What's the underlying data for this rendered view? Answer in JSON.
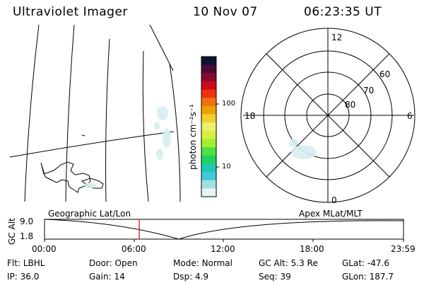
{
  "header": {
    "title": "Ultraviolet Imager",
    "date": "10 Nov 07",
    "time": "06:23:35 UT"
  },
  "colorbar": {
    "unit_label": "photon cm⁻²s⁻¹",
    "ticks": [
      "100",
      "10"
    ],
    "colors": [
      "#111133",
      "#4a0a3a",
      "#8a0a2a",
      "#cc0a1a",
      "#ee3010",
      "#f07010",
      "#f0a000",
      "#f0d030",
      "#f0f070",
      "#d8f040",
      "#a0f030",
      "#50e040",
      "#20d060",
      "#20c8b0",
      "#40c8d8",
      "#a0e0e0",
      "#e8f4f4"
    ]
  },
  "polar_plot": {
    "mlt_labels": {
      "top": "12",
      "left": "18",
      "right": "6",
      "bottom": "0"
    },
    "lat_labels": [
      "80",
      "70",
      "60"
    ]
  },
  "timeline": {
    "y_axis_label": "GC Alt",
    "y_ticks": [
      "9.0",
      "1.8"
    ],
    "left_label": "Geographic Lat/Lon",
    "right_label": "Apex  MLat/MLT",
    "x_ticks": [
      "00:00",
      "06:00",
      "12:00",
      "18:00",
      "23:59"
    ],
    "marker_color": "#dd0000"
  },
  "status": {
    "row1": [
      {
        "key": "Flt:",
        "value": "LBHL"
      },
      {
        "key": "Door:",
        "value": "Open"
      },
      {
        "key": "Mode:",
        "value": "Normal"
      },
      {
        "key": "GC Alt:",
        "value": "5.3 Re"
      },
      {
        "key": "GLat:",
        "value": "-47.6"
      }
    ],
    "row2": [
      {
        "key": "IP:",
        "value": "36.0"
      },
      {
        "key": "Gain:",
        "value": "14"
      },
      {
        "key": "Dsp:",
        "value": "4.9"
      },
      {
        "key": "Seq:",
        "value": "39"
      },
      {
        "key": "GLon:",
        "value": "187.7"
      }
    ]
  }
}
